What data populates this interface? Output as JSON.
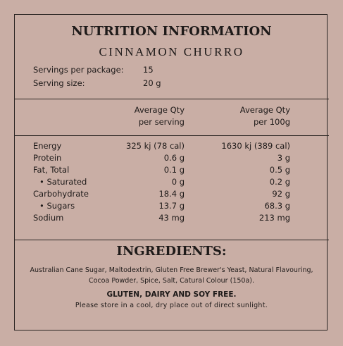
{
  "header": {
    "title": "NUTRITION INFORMATION",
    "subtitle": "CINNAMON CHURRO"
  },
  "servings": [
    {
      "label": "Servings per package:",
      "value": "15"
    },
    {
      "label": "Serving size:",
      "value": "20 g"
    }
  ],
  "table": {
    "columns": [
      [
        "Average Qty",
        "per serving"
      ],
      [
        "Average Qty",
        "per 100g"
      ]
    ],
    "rows": [
      [
        "Energy",
        "325 kj (78 cal)",
        "1630 kj (389 cal)"
      ],
      [
        "Protein",
        "0.6 g",
        "3 g"
      ],
      [
        "Fat, Total",
        "0.1 g",
        "0.5 g"
      ],
      [
        "• Saturated",
        "0 g",
        "0.2 g"
      ],
      [
        "Carbohydrate",
        "18.4 g",
        "92 g"
      ],
      [
        "• Sugars",
        "13.7 g",
        "68.3 g"
      ],
      [
        "Sodium",
        "43 mg",
        "213 mg"
      ]
    ]
  },
  "ingredients": {
    "title": "INGREDIENTS:",
    "text": "Australian Cane Sugar, Maltodextrin, Gluten Free Brewer's Yeast, Natural Flavouring, Cocoa Powder, Spice, Salt, Catural Colour (150a).",
    "allergen": "GLUTEN, DAIRY AND SOY FREE.",
    "storage": "Please store in a cool, dry place out of direct sunlight."
  }
}
